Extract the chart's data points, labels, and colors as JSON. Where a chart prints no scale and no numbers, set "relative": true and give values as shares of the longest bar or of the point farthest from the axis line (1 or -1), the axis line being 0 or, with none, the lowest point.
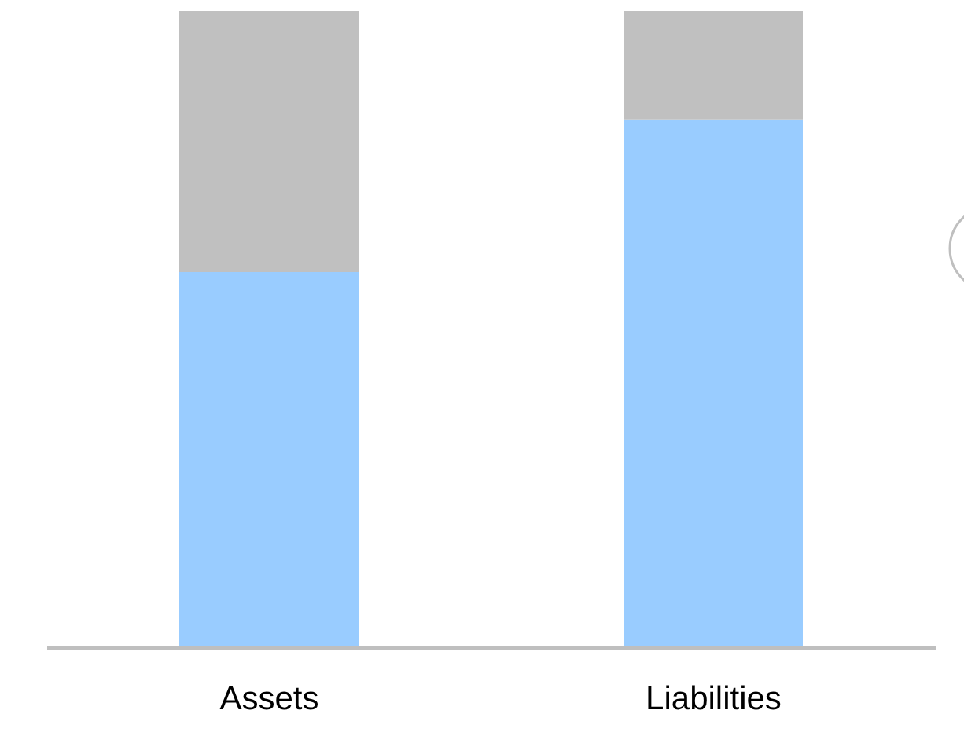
{
  "chart_data": {
    "type": "bar",
    "relative": true,
    "stacked": true,
    "categories": [
      "Assets",
      "Liabilities"
    ],
    "series": [
      {
        "color": "#99ccff",
        "values": [
          0.59,
          0.83
        ]
      },
      {
        "color": "#c0c0c0",
        "values": [
          0.41,
          0.17
        ]
      }
    ]
  }
}
